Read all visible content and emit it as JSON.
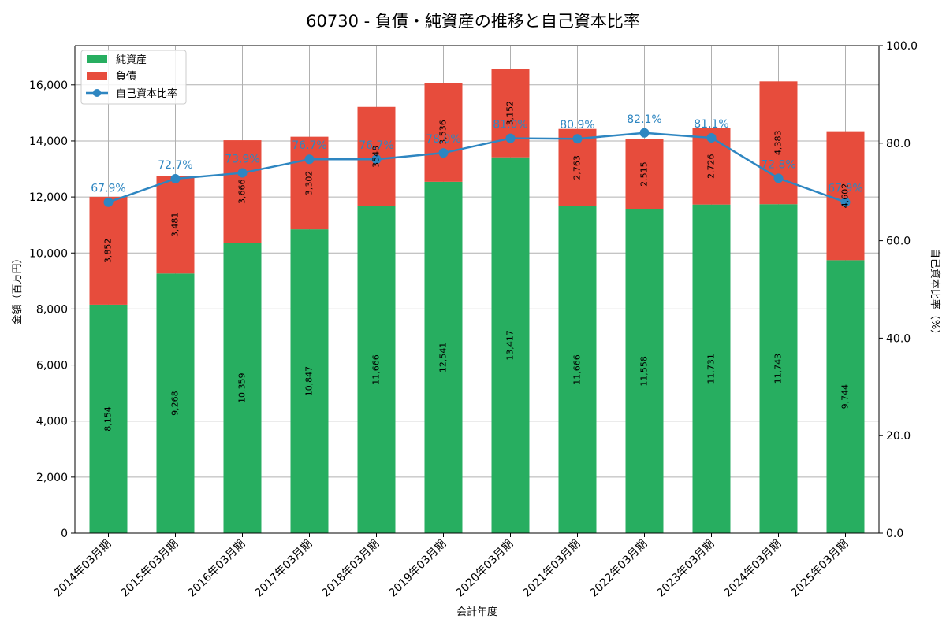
{
  "chart_data": {
    "type": "bar",
    "stacked": true,
    "title": "60730 - 負債・純資産の推移と自己資本比率",
    "xlabel": "会計年度",
    "ylabel": "金額（百万円）",
    "y2label": "自己資本比率（%）",
    "ylim": [
      0,
      17400
    ],
    "y2lim": [
      0,
      100
    ],
    "yticks": [
      "0",
      "2,000",
      "4,000",
      "6,000",
      "8,000",
      "10,000",
      "12,000",
      "14,000",
      "16,000"
    ],
    "y2ticks": [
      "0.0",
      "20.0",
      "40.0",
      "60.0",
      "80.0",
      "100.0"
    ],
    "grid": true,
    "legend_position": "top-left",
    "categories": [
      "2014年03月期",
      "2015年03月期",
      "2016年03月期",
      "2017年03月期",
      "2018年03月期",
      "2019年03月期",
      "2020年03月期",
      "2021年03月期",
      "2022年03月期",
      "2023年03月期",
      "2024年03月期",
      "2025年03月期"
    ],
    "series": [
      {
        "name": "純資産",
        "kind": "bar",
        "color": "#27ae60",
        "values": [
          8154,
          9268,
          10359,
          10847,
          11666,
          12541,
          13417,
          11666,
          11558,
          11731,
          11743,
          9744
        ],
        "labels": [
          "8,154",
          "9,268",
          "10,359",
          "10,847",
          "11,666",
          "12,541",
          "13,417",
          "11,666",
          "11,558",
          "11,731",
          "11,743",
          "9,744"
        ]
      },
      {
        "name": "負債",
        "kind": "bar",
        "color": "#e74c3c",
        "values": [
          3852,
          3481,
          3666,
          3302,
          3548,
          3536,
          3152,
          2763,
          2515,
          2726,
          4383,
          4602
        ],
        "labels": [
          "3,852",
          "3,481",
          "3,666",
          "3,302",
          "3548",
          "3,536",
          "3,152",
          "2,763",
          "2,515",
          "2,726",
          "4,383",
          "4,602"
        ]
      },
      {
        "name": "自己資本比率",
        "kind": "line",
        "axis": "right",
        "color": "#2e86c1",
        "values": [
          67.9,
          72.7,
          73.9,
          76.7,
          76.7,
          78.0,
          81.0,
          80.9,
          82.1,
          81.1,
          72.8,
          67.9
        ],
        "labels": [
          "67.9%",
          "72.7%",
          "73.9%",
          "76.7%",
          "76.7%",
          "78.0%",
          "81.0%",
          "80.9%",
          "82.1%",
          "81.1%",
          "72.8%",
          "67.9%"
        ]
      }
    ]
  }
}
